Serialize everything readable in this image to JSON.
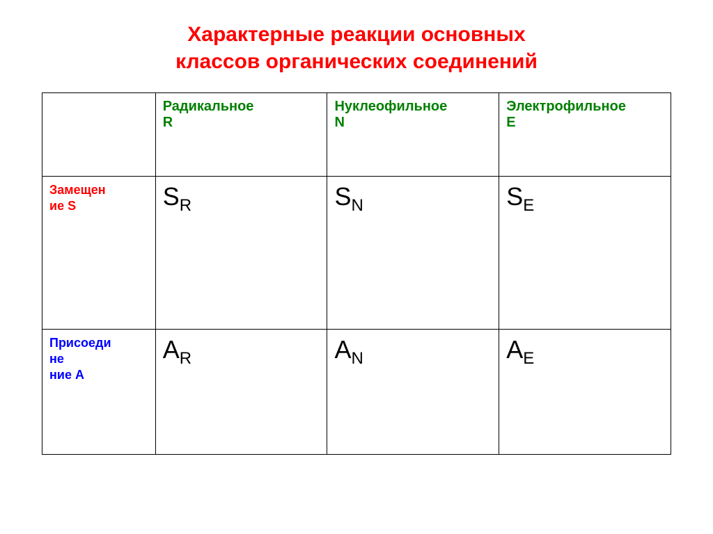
{
  "title": {
    "line1": "Характерные реакции основных",
    "line2": "классов органических соединений",
    "color": "#ff0000",
    "fontsize": 30
  },
  "table": {
    "type": "table",
    "columns": [
      {
        "label": "",
        "width": "18%"
      },
      {
        "label_line1": "Радикальное",
        "label_line2": "R",
        "color": "#008000",
        "width": "27.3%"
      },
      {
        "label_line1": "Нуклеофильное",
        "label_line2": "N",
        "color": "#008000",
        "width": "27.3%"
      },
      {
        "label_line1": "Электрофильное",
        "label_line2": "E",
        "color": "#008000",
        "width": "27.3%"
      }
    ],
    "rows": [
      {
        "label_line1": "Замещен",
        "label_line2": "ие S",
        "label_color": "#ff0000",
        "cells": [
          {
            "main": "S",
            "sub": "R"
          },
          {
            "main": "S",
            "sub": "N"
          },
          {
            "main": "S",
            "sub": "E"
          }
        ]
      },
      {
        "label_line1": "Присоеди",
        "label_line2": "не",
        "label_line3": "ние A",
        "label_color": "#0000ff",
        "cells": [
          {
            "main": "A",
            "sub": "R"
          },
          {
            "main": "A",
            "sub": "N"
          },
          {
            "main": "A",
            "sub": "E"
          }
        ]
      }
    ],
    "border_color": "#000000",
    "background_color": "#ffffff",
    "cell_symbol_fontsize": 36,
    "cell_sub_fontsize": 24,
    "header_fontsize": 20,
    "rowlabel_fontsize": 18
  }
}
